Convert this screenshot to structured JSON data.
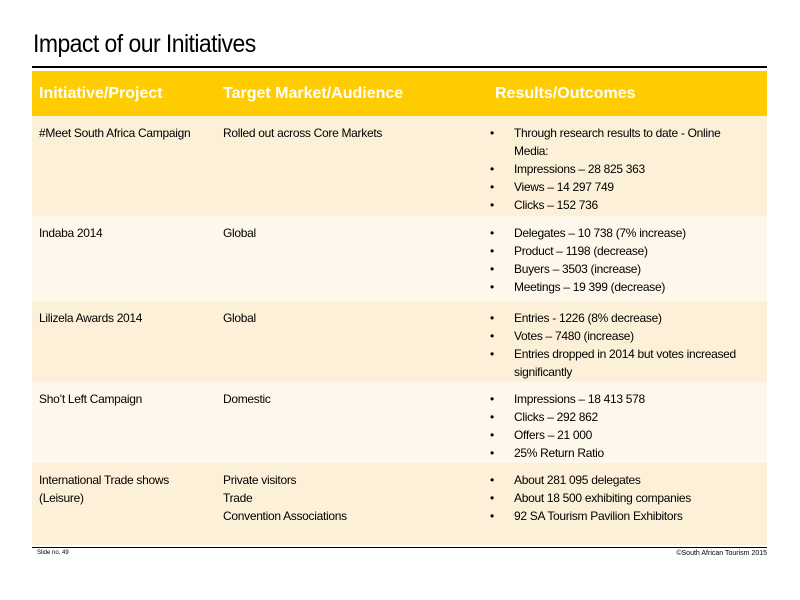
{
  "title": "Impact of our Initiatives",
  "colors": {
    "header_bg": "#ffcc00",
    "header_text": "#ffffff",
    "row_a": "#fdf0d8",
    "row_b": "#fef7eb"
  },
  "table": {
    "headers": [
      "Initiative/Project",
      "Target Market/Audience",
      "Results/Outcomes"
    ],
    "rows": [
      {
        "initiative": [
          "#Meet South Africa Campaign"
        ],
        "target": [
          "Rolled out across Core Markets"
        ],
        "results": [
          "Through research results to date - Online Media:",
          "Impressions – 28 825 363",
          "Views – 14 297 749",
          "Clicks – 152 736"
        ]
      },
      {
        "initiative": [
          "Indaba 2014"
        ],
        "target": [
          "Global"
        ],
        "results": [
          "Delegates – 10 738 (7% increase)",
          "Product – 1198 (decrease)",
          "Buyers – 3503 (increase)",
          "Meetings – 19 399 (decrease)"
        ]
      },
      {
        "initiative": [
          "Lilizela Awards 2014"
        ],
        "target": [
          "Global"
        ],
        "results": [
          "Entries - 1226 (8% decrease)",
          "Votes – 7480 (increase)",
          "Entries dropped in 2014 but votes increased significantly"
        ]
      },
      {
        "initiative": [
          "Sho’t Left Campaign"
        ],
        "target": [
          "Domestic"
        ],
        "results": [
          "Impressions – 18 413 578",
          "Clicks – 292 862",
          "Offers – 21 000",
          "25% Return Ratio"
        ]
      },
      {
        "initiative": [
          "International Trade shows",
          "(Leisure)"
        ],
        "target": [
          "Private visitors",
          "Trade",
          "Convention Associations"
        ],
        "results": [
          "About 281 095 delegates",
          "About 18 500 exhibiting companies",
          "92 SA Tourism Pavilion Exhibitors"
        ]
      }
    ]
  },
  "footer": {
    "slide_no": "Slide no. 49",
    "copyright": "©South African Tourism 2015"
  }
}
